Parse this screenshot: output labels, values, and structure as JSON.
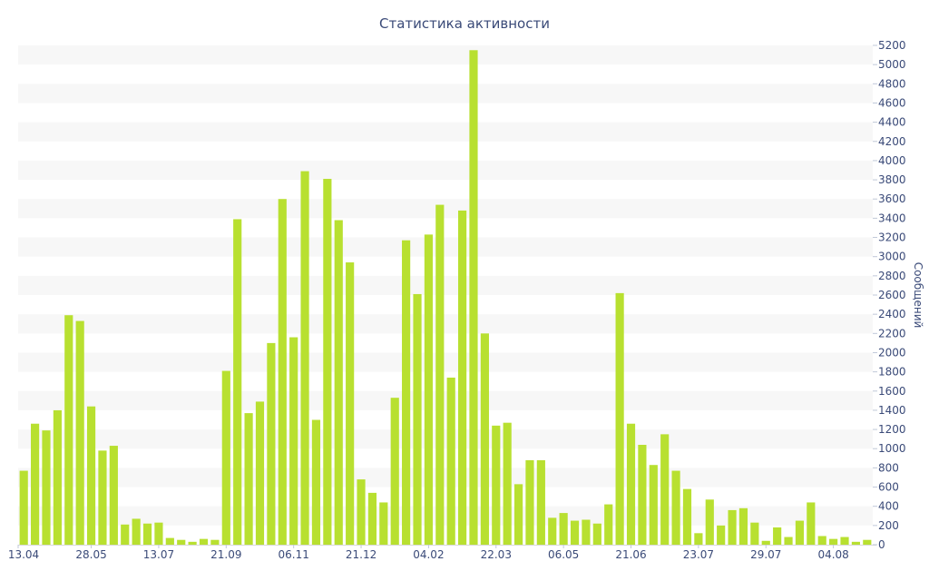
{
  "chart_data": {
    "type": "bar",
    "title": "Статистика активности",
    "ylabel": "Сообщений",
    "xlabel": "",
    "ylim": [
      0,
      5200
    ],
    "y_ticks": [
      0,
      200,
      400,
      600,
      800,
      1000,
      1200,
      1400,
      1600,
      1800,
      2000,
      2200,
      2400,
      2600,
      2800,
      3000,
      3200,
      3400,
      3600,
      3800,
      4000,
      4200,
      4400,
      4600,
      4800,
      5000,
      5200
    ],
    "x_tick_labels": [
      {
        "label": "13.04",
        "index": 0
      },
      {
        "label": "28.05",
        "index": 6
      },
      {
        "label": "13.07",
        "index": 12
      },
      {
        "label": "21.09",
        "index": 18
      },
      {
        "label": "06.11",
        "index": 24
      },
      {
        "label": "21.12",
        "index": 30
      },
      {
        "label": "04.02",
        "index": 36
      },
      {
        "label": "22.03",
        "index": 42
      },
      {
        "label": "06.05",
        "index": 48
      },
      {
        "label": "21.06",
        "index": 54
      },
      {
        "label": "23.07",
        "index": 60
      },
      {
        "label": "29.07",
        "index": 66
      },
      {
        "label": "04.08",
        "index": 72
      }
    ],
    "grid": "horizontal-bands",
    "color": "#b8e030",
    "values": [
      770,
      1260,
      1190,
      1400,
      2390,
      2330,
      1440,
      980,
      1030,
      210,
      270,
      220,
      230,
      70,
      50,
      30,
      60,
      50,
      1810,
      3390,
      1370,
      1490,
      2100,
      3600,
      2160,
      3890,
      1300,
      3810,
      3380,
      2940,
      680,
      540,
      440,
      1530,
      3170,
      2610,
      3230,
      3540,
      1740,
      3480,
      5150,
      2200,
      1240,
      1270,
      630,
      880,
      880,
      280,
      330,
      250,
      260,
      220,
      420,
      2620,
      1260,
      1040,
      830,
      1150,
      770,
      580,
      120,
      470,
      200,
      360,
      380,
      230,
      40,
      180,
      80,
      250,
      440,
      90,
      60,
      80,
      30,
      50
    ]
  }
}
